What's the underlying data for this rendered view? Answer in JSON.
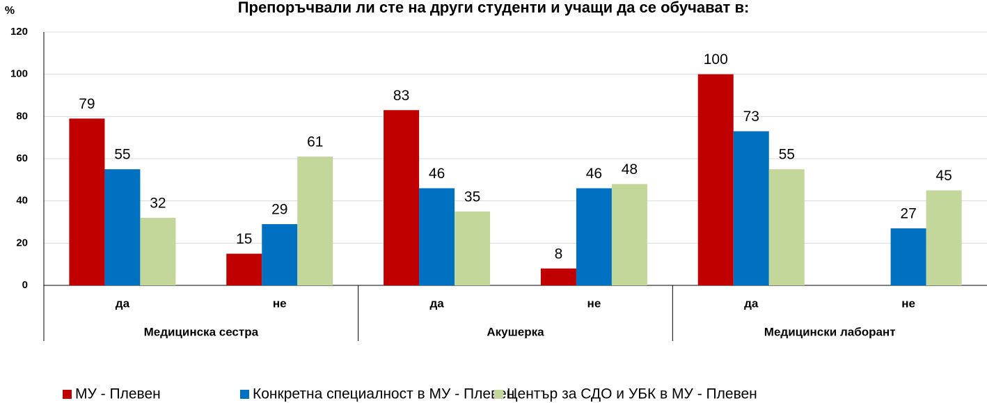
{
  "chart_data": {
    "type": "bar",
    "title": "Препоръчвали ли сте на други студенти и учащи да се обучават в:",
    "y_label": "%",
    "categories": [
      "да",
      "не",
      "да",
      "не",
      "да",
      "не"
    ],
    "category_groups": [
      "Медицинска сестра",
      "Акушерка",
      "Медицински лаборант"
    ],
    "series": [
      {
        "name": "МУ - Плевен",
        "color": "#c00000",
        "values": [
          79,
          15,
          83,
          8,
          100,
          null
        ]
      },
      {
        "name": "Конкретна специалност в МУ - Плевен",
        "color": "#0070c0",
        "values": [
          55,
          29,
          46,
          46,
          73,
          27
        ]
      },
      {
        "name": "Център за СДО и УБК в МУ - Плевен",
        "color": "#c4d79b",
        "values": [
          32,
          61,
          35,
          48,
          55,
          45
        ]
      }
    ],
    "ylim": [
      0,
      120
    ],
    "yticks": [
      0,
      20,
      40,
      60,
      80,
      100,
      120
    ],
    "grid": true,
    "legend": "bottom"
  }
}
